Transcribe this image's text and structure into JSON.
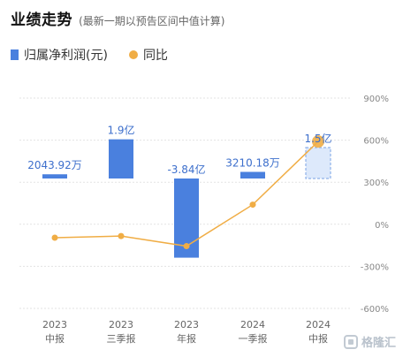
{
  "header": {
    "title": "业绩走势",
    "subtitle": "(最新一期以预告区间中值计算)"
  },
  "legend": {
    "bar_label": "归属净利润(元)",
    "line_label": "同比"
  },
  "colors": {
    "bar": "#4a80de",
    "bar_estimate_fill": "#dde9fb",
    "bar_estimate_border": "#8fb2ea",
    "line": "#f0ad45",
    "grid": "#e3e3e3",
    "axis_text": "#888888",
    "bar_label_text": "#3d6fcc"
  },
  "watermark": {
    "text": "格隆汇"
  },
  "chart_data": {
    "type": "bar",
    "categories": [
      [
        "2023",
        "中报"
      ],
      [
        "2023",
        "三季报"
      ],
      [
        "2023",
        "年报"
      ],
      [
        "2024",
        "一季报"
      ],
      [
        "2024",
        "中报"
      ]
    ],
    "series": [
      {
        "name": "归属净利润(元)",
        "type": "bar",
        "axis": "left",
        "values": [
          20439200,
          190000000,
          -384000000,
          32101800,
          150000000
        ],
        "labels": [
          "2043.92万",
          "1.9亿",
          "-3.84亿",
          "3210.18万",
          "1.5亿"
        ],
        "estimate": [
          false,
          false,
          false,
          false,
          true
        ]
      },
      {
        "name": "同比",
        "type": "line",
        "axis": "right",
        "values": [
          -96,
          -84,
          -156,
          140,
          590
        ]
      }
    ],
    "right_axis": {
      "ticks": [
        -600,
        -300,
        0,
        300,
        600,
        900
      ],
      "tick_labels": [
        "-600%",
        "-300%",
        "0%",
        "300%",
        "600%",
        "900%"
      ],
      "ylim": [
        -600,
        900
      ]
    },
    "left_axis": {
      "ylim": [
        -630000000,
        390000000
      ]
    },
    "grid": true,
    "legend_position": "top-left"
  }
}
